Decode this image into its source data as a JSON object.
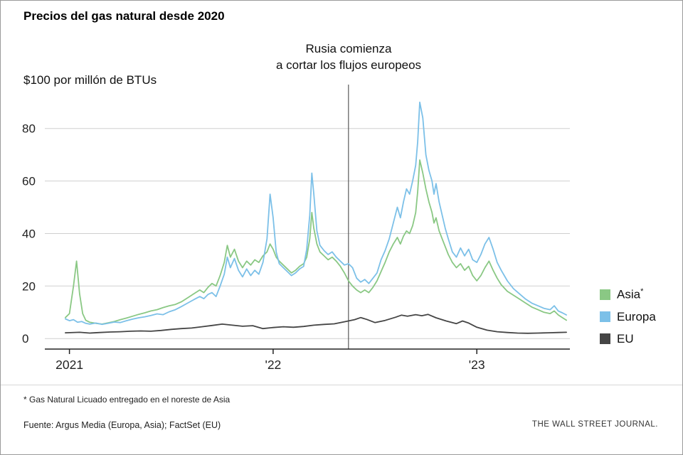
{
  "title": "Precios del gas natural desde 2020",
  "annotation": {
    "line1": "Rusia comienza",
    "line2": "a cortar los flujos europeos"
  },
  "y_axis_unit": "$100 por millón de BTUs",
  "footnote": "* Gas Natural Licuado entregado en el noreste de Asia",
  "source": "Fuente: Argus Media (Europa, Asia); FactSet (EU)",
  "credit": "THE WALL STREET JOURNAL.",
  "chart_data": {
    "type": "line",
    "title": "Precios del gas natural desde 2020",
    "xlabel": "",
    "ylabel": "$100 por millón de BTUs",
    "ylim": [
      -4,
      94
    ],
    "yticks": [
      0,
      20,
      40,
      60,
      80
    ],
    "xlim": [
      2020.97,
      2023.45
    ],
    "xticks": [
      {
        "value": 2021,
        "label": "2021"
      },
      {
        "value": 2022,
        "label": "'22"
      },
      {
        "value": 2023,
        "label": "'23"
      }
    ],
    "grid": "horizontal",
    "legend_position": "right",
    "annotation": {
      "x": 2022.37,
      "text": "Rusia comienza a cortar los flujos europeos"
    },
    "series": [
      {
        "name": "Asia",
        "legend": "Asia*",
        "color": "#8ac884",
        "points": [
          [
            2020.98,
            8
          ],
          [
            2021.0,
            9.5
          ],
          [
            2021.02,
            20
          ],
          [
            2021.035,
            29.5
          ],
          [
            2021.05,
            17
          ],
          [
            2021.065,
            9.5
          ],
          [
            2021.08,
            7
          ],
          [
            2021.1,
            6.2
          ],
          [
            2021.13,
            5.8
          ],
          [
            2021.16,
            5.5
          ],
          [
            2021.19,
            6
          ],
          [
            2021.22,
            6.5
          ],
          [
            2021.25,
            7.2
          ],
          [
            2021.28,
            7.8
          ],
          [
            2021.31,
            8.5
          ],
          [
            2021.34,
            9.2
          ],
          [
            2021.37,
            9.8
          ],
          [
            2021.4,
            10.5
          ],
          [
            2021.43,
            11
          ],
          [
            2021.46,
            11.8
          ],
          [
            2021.49,
            12.5
          ],
          [
            2021.52,
            13
          ],
          [
            2021.55,
            14
          ],
          [
            2021.58,
            15.5
          ],
          [
            2021.61,
            17
          ],
          [
            2021.64,
            18.5
          ],
          [
            2021.66,
            17.5
          ],
          [
            2021.68,
            19.5
          ],
          [
            2021.7,
            21
          ],
          [
            2021.72,
            20
          ],
          [
            2021.74,
            24
          ],
          [
            2021.76,
            29
          ],
          [
            2021.775,
            35.5
          ],
          [
            2021.79,
            31
          ],
          [
            2021.81,
            34
          ],
          [
            2021.83,
            29.5
          ],
          [
            2021.85,
            27
          ],
          [
            2021.87,
            29.5
          ],
          [
            2021.89,
            28
          ],
          [
            2021.91,
            30
          ],
          [
            2021.93,
            29
          ],
          [
            2021.95,
            31.5
          ],
          [
            2021.97,
            33
          ],
          [
            2021.985,
            36
          ],
          [
            2022.0,
            34
          ],
          [
            2022.015,
            31
          ],
          [
            2022.03,
            29.5
          ],
          [
            2022.05,
            28
          ],
          [
            2022.07,
            26.5
          ],
          [
            2022.09,
            25
          ],
          [
            2022.11,
            26
          ],
          [
            2022.13,
            27.5
          ],
          [
            2022.15,
            28.5
          ],
          [
            2022.165,
            31
          ],
          [
            2022.18,
            38
          ],
          [
            2022.19,
            48
          ],
          [
            2022.2,
            42
          ],
          [
            2022.215,
            36
          ],
          [
            2022.23,
            33
          ],
          [
            2022.25,
            31.5
          ],
          [
            2022.27,
            30
          ],
          [
            2022.29,
            31
          ],
          [
            2022.31,
            29.5
          ],
          [
            2022.33,
            27.5
          ],
          [
            2022.35,
            25
          ],
          [
            2022.37,
            22
          ],
          [
            2022.39,
            20
          ],
          [
            2022.41,
            18.5
          ],
          [
            2022.43,
            17.5
          ],
          [
            2022.45,
            18.5
          ],
          [
            2022.47,
            17.5
          ],
          [
            2022.49,
            19.5
          ],
          [
            2022.51,
            22
          ],
          [
            2022.53,
            25.5
          ],
          [
            2022.55,
            29
          ],
          [
            2022.57,
            33
          ],
          [
            2022.59,
            36
          ],
          [
            2022.61,
            38.5
          ],
          [
            2022.625,
            36
          ],
          [
            2022.64,
            39
          ],
          [
            2022.655,
            41
          ],
          [
            2022.67,
            40
          ],
          [
            2022.685,
            43
          ],
          [
            2022.7,
            48
          ],
          [
            2022.71,
            56
          ],
          [
            2022.72,
            68
          ],
          [
            2022.735,
            63
          ],
          [
            2022.75,
            57
          ],
          [
            2022.765,
            52
          ],
          [
            2022.78,
            48
          ],
          [
            2022.79,
            44
          ],
          [
            2022.8,
            46
          ],
          [
            2022.815,
            41
          ],
          [
            2022.83,
            38
          ],
          [
            2022.845,
            35
          ],
          [
            2022.86,
            32
          ],
          [
            2022.88,
            29
          ],
          [
            2022.9,
            27
          ],
          [
            2022.92,
            28.5
          ],
          [
            2022.94,
            26
          ],
          [
            2022.96,
            27.5
          ],
          [
            2022.98,
            24
          ],
          [
            2023.0,
            22
          ],
          [
            2023.02,
            24
          ],
          [
            2023.04,
            27
          ],
          [
            2023.06,
            29.5
          ],
          [
            2023.08,
            26
          ],
          [
            2023.1,
            23
          ],
          [
            2023.12,
            20.5
          ],
          [
            2023.15,
            18
          ],
          [
            2023.18,
            16.5
          ],
          [
            2023.21,
            15
          ],
          [
            2023.24,
            13.5
          ],
          [
            2023.27,
            12
          ],
          [
            2023.3,
            11
          ],
          [
            2023.33,
            10
          ],
          [
            2023.36,
            9.5
          ],
          [
            2023.38,
            10.5
          ],
          [
            2023.4,
            9
          ],
          [
            2023.42,
            8
          ],
          [
            2023.44,
            7
          ]
        ]
      },
      {
        "name": "Europa",
        "legend": "Europa",
        "color": "#7cc0e8",
        "points": [
          [
            2020.98,
            7.5
          ],
          [
            2021.0,
            6.8
          ],
          [
            2021.02,
            7.2
          ],
          [
            2021.04,
            6.2
          ],
          [
            2021.06,
            6.5
          ],
          [
            2021.08,
            5.8
          ],
          [
            2021.1,
            5.5
          ],
          [
            2021.13,
            5.9
          ],
          [
            2021.16,
            5.4
          ],
          [
            2021.19,
            5.8
          ],
          [
            2021.22,
            6.3
          ],
          [
            2021.25,
            6.1
          ],
          [
            2021.28,
            6.8
          ],
          [
            2021.31,
            7.4
          ],
          [
            2021.34,
            7.9
          ],
          [
            2021.37,
            8.3
          ],
          [
            2021.4,
            8.8
          ],
          [
            2021.43,
            9.4
          ],
          [
            2021.46,
            9.1
          ],
          [
            2021.49,
            10.2
          ],
          [
            2021.52,
            11
          ],
          [
            2021.55,
            12.2
          ],
          [
            2021.58,
            13.5
          ],
          [
            2021.61,
            14.8
          ],
          [
            2021.64,
            16
          ],
          [
            2021.66,
            15.2
          ],
          [
            2021.68,
            16.8
          ],
          [
            2021.7,
            17.5
          ],
          [
            2021.72,
            16
          ],
          [
            2021.74,
            20
          ],
          [
            2021.76,
            24.5
          ],
          [
            2021.775,
            31
          ],
          [
            2021.79,
            27
          ],
          [
            2021.81,
            30.5
          ],
          [
            2021.83,
            26
          ],
          [
            2021.85,
            23.5
          ],
          [
            2021.87,
            26.5
          ],
          [
            2021.89,
            24
          ],
          [
            2021.91,
            26
          ],
          [
            2021.93,
            24.5
          ],
          [
            2021.95,
            29
          ],
          [
            2021.97,
            38
          ],
          [
            2021.985,
            55
          ],
          [
            2022.0,
            46
          ],
          [
            2022.015,
            33
          ],
          [
            2022.03,
            28.5
          ],
          [
            2022.05,
            27
          ],
          [
            2022.07,
            25.5
          ],
          [
            2022.09,
            24
          ],
          [
            2022.11,
            25
          ],
          [
            2022.13,
            26.5
          ],
          [
            2022.15,
            27.5
          ],
          [
            2022.165,
            34
          ],
          [
            2022.18,
            47
          ],
          [
            2022.19,
            63
          ],
          [
            2022.2,
            55
          ],
          [
            2022.215,
            41
          ],
          [
            2022.23,
            35.5
          ],
          [
            2022.25,
            33.5
          ],
          [
            2022.27,
            32
          ],
          [
            2022.29,
            33
          ],
          [
            2022.31,
            31
          ],
          [
            2022.33,
            29.5
          ],
          [
            2022.35,
            28
          ],
          [
            2022.37,
            28.5
          ],
          [
            2022.39,
            27
          ],
          [
            2022.41,
            23
          ],
          [
            2022.43,
            21.5
          ],
          [
            2022.45,
            22.5
          ],
          [
            2022.47,
            21
          ],
          [
            2022.49,
            23
          ],
          [
            2022.51,
            25
          ],
          [
            2022.53,
            30
          ],
          [
            2022.55,
            33.5
          ],
          [
            2022.57,
            38
          ],
          [
            2022.59,
            44
          ],
          [
            2022.61,
            50
          ],
          [
            2022.625,
            46
          ],
          [
            2022.64,
            52
          ],
          [
            2022.655,
            57
          ],
          [
            2022.67,
            55
          ],
          [
            2022.685,
            60
          ],
          [
            2022.7,
            66
          ],
          [
            2022.71,
            75
          ],
          [
            2022.72,
            90
          ],
          [
            2022.735,
            84
          ],
          [
            2022.75,
            70
          ],
          [
            2022.765,
            64
          ],
          [
            2022.78,
            60
          ],
          [
            2022.79,
            55
          ],
          [
            2022.8,
            59
          ],
          [
            2022.815,
            52
          ],
          [
            2022.83,
            47
          ],
          [
            2022.845,
            42
          ],
          [
            2022.86,
            38
          ],
          [
            2022.88,
            33
          ],
          [
            2022.9,
            31
          ],
          [
            2022.92,
            34.5
          ],
          [
            2022.94,
            31.5
          ],
          [
            2022.96,
            34
          ],
          [
            2022.98,
            30
          ],
          [
            2023.0,
            29
          ],
          [
            2023.02,
            32
          ],
          [
            2023.04,
            36
          ],
          [
            2023.06,
            38.5
          ],
          [
            2023.08,
            34
          ],
          [
            2023.1,
            29
          ],
          [
            2023.12,
            26
          ],
          [
            2023.15,
            22
          ],
          [
            2023.18,
            19
          ],
          [
            2023.21,
            17
          ],
          [
            2023.24,
            15
          ],
          [
            2023.27,
            13.5
          ],
          [
            2023.3,
            12.5
          ],
          [
            2023.33,
            11.5
          ],
          [
            2023.36,
            11
          ],
          [
            2023.38,
            12.5
          ],
          [
            2023.4,
            10.5
          ],
          [
            2023.42,
            9.8
          ],
          [
            2023.44,
            9
          ]
        ]
      },
      {
        "name": "EU",
        "legend": "EU",
        "color": "#454545",
        "points": [
          [
            2020.98,
            2.2
          ],
          [
            2021.05,
            2.4
          ],
          [
            2021.1,
            2.1
          ],
          [
            2021.15,
            2.3
          ],
          [
            2021.2,
            2.5
          ],
          [
            2021.25,
            2.6
          ],
          [
            2021.3,
            2.8
          ],
          [
            2021.35,
            2.9
          ],
          [
            2021.4,
            2.8
          ],
          [
            2021.45,
            3.1
          ],
          [
            2021.5,
            3.5
          ],
          [
            2021.55,
            3.8
          ],
          [
            2021.6,
            4
          ],
          [
            2021.65,
            4.5
          ],
          [
            2021.7,
            5
          ],
          [
            2021.75,
            5.5
          ],
          [
            2021.8,
            5.1
          ],
          [
            2021.85,
            4.7
          ],
          [
            2021.9,
            4.9
          ],
          [
            2021.95,
            3.8
          ],
          [
            2022.0,
            4.2
          ],
          [
            2022.05,
            4.5
          ],
          [
            2022.1,
            4.3
          ],
          [
            2022.15,
            4.6
          ],
          [
            2022.2,
            5.1
          ],
          [
            2022.25,
            5.4
          ],
          [
            2022.3,
            5.6
          ],
          [
            2022.35,
            6.4
          ],
          [
            2022.4,
            7.2
          ],
          [
            2022.43,
            8
          ],
          [
            2022.46,
            7.3
          ],
          [
            2022.5,
            6.1
          ],
          [
            2022.55,
            6.9
          ],
          [
            2022.6,
            8.1
          ],
          [
            2022.63,
            8.9
          ],
          [
            2022.66,
            8.5
          ],
          [
            2022.7,
            9.1
          ],
          [
            2022.73,
            8.7
          ],
          [
            2022.76,
            9.2
          ],
          [
            2022.8,
            7.9
          ],
          [
            2022.85,
            6.7
          ],
          [
            2022.9,
            5.7
          ],
          [
            2022.93,
            6.7
          ],
          [
            2022.96,
            5.9
          ],
          [
            2023.0,
            4.3
          ],
          [
            2023.05,
            3.2
          ],
          [
            2023.1,
            2.6
          ],
          [
            2023.15,
            2.3
          ],
          [
            2023.2,
            2.1
          ],
          [
            2023.25,
            2
          ],
          [
            2023.3,
            2.1
          ],
          [
            2023.35,
            2.2
          ],
          [
            2023.4,
            2.3
          ],
          [
            2023.44,
            2.4
          ]
        ]
      }
    ]
  }
}
